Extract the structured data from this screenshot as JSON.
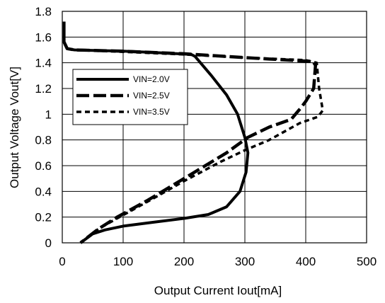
{
  "chart_data": {
    "type": "line",
    "title": "",
    "xlabel": "Output Current Iout[mA]",
    "ylabel": "Output Voltage Vout[V]",
    "xlim": [
      0,
      500
    ],
    "ylim": [
      0,
      1.8
    ],
    "xticks": [
      "0",
      "100",
      "200",
      "300",
      "400",
      "500"
    ],
    "yticks": [
      "0",
      "0.2",
      "0.4",
      "0.6",
      "0.8",
      "1",
      "1.2",
      "1.4",
      "1.6",
      "1.8"
    ],
    "grid": true,
    "legend_position": "upper-left",
    "series": [
      {
        "name": "VIN=2.0V",
        "style": "solid",
        "points": [
          [
            3,
            1.72
          ],
          [
            3,
            1.56
          ],
          [
            8,
            1.51
          ],
          [
            20,
            1.5
          ],
          [
            100,
            1.49
          ],
          [
            150,
            1.48
          ],
          [
            190,
            1.47
          ],
          [
            212,
            1.465
          ],
          [
            218,
            1.45
          ],
          [
            245,
            1.3
          ],
          [
            270,
            1.15
          ],
          [
            288,
            1.0
          ],
          [
            300,
            0.82
          ],
          [
            305,
            0.7
          ],
          [
            302,
            0.55
          ],
          [
            292,
            0.4
          ],
          [
            270,
            0.28
          ],
          [
            240,
            0.22
          ],
          [
            200,
            0.19
          ],
          [
            150,
            0.16
          ],
          [
            100,
            0.13
          ],
          [
            70,
            0.1
          ],
          [
            50,
            0.07
          ],
          [
            30,
            0.0
          ]
        ]
      },
      {
        "name": "VIN=2.5V",
        "style": "dashed",
        "points": [
          [
            3,
            1.56
          ],
          [
            8,
            1.51
          ],
          [
            20,
            1.5
          ],
          [
            100,
            1.49
          ],
          [
            200,
            1.47
          ],
          [
            300,
            1.44
          ],
          [
            412,
            1.41
          ],
          [
            416,
            1.38
          ],
          [
            413,
            1.2
          ],
          [
            400,
            1.1
          ],
          [
            392,
            1.05
          ],
          [
            376,
            0.96
          ],
          [
            340,
            0.9
          ],
          [
            305,
            0.82
          ],
          [
            270,
            0.7
          ],
          [
            200,
            0.5
          ],
          [
            140,
            0.33
          ],
          [
            90,
            0.2
          ],
          [
            60,
            0.11
          ],
          [
            30,
            0.0
          ]
        ]
      },
      {
        "name": "VIN=3.5V",
        "style": "dotted",
        "points": [
          [
            3,
            1.56
          ],
          [
            8,
            1.51
          ],
          [
            20,
            1.5
          ],
          [
            100,
            1.485
          ],
          [
            200,
            1.465
          ],
          [
            300,
            1.44
          ],
          [
            400,
            1.42
          ],
          [
            418,
            1.4
          ],
          [
            422,
            1.2
          ],
          [
            428,
            1.03
          ],
          [
            420,
            0.98
          ],
          [
            390,
            0.93
          ],
          [
            340,
            0.8
          ],
          [
            300,
            0.72
          ],
          [
            260,
            0.63
          ],
          [
            200,
            0.48
          ],
          [
            140,
            0.32
          ],
          [
            90,
            0.19
          ],
          [
            60,
            0.11
          ],
          [
            30,
            0.0
          ]
        ]
      }
    ]
  }
}
